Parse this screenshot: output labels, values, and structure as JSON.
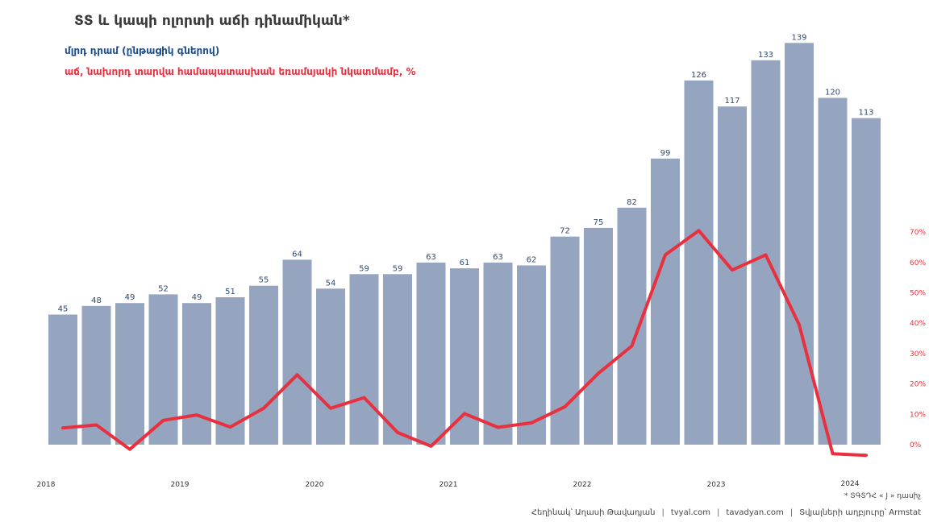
{
  "chart_data": {
    "type": "bar",
    "title": "ՏՏ և կապի ոլորտի աճի դինամիկան*",
    "subtitle_bars": "մլրդ դրամ (ընթացիկ գներով)",
    "subtitle_line": "աճ, նախորդ տարվա համապատասխան եռամսյակի նկատմամբ, %",
    "x_tick_labels": [
      "2018",
      "2019",
      "2020",
      "2021",
      "2022",
      "2023",
      "2024"
    ],
    "y2_ticks": [
      "0%",
      "10%",
      "20%",
      "30%",
      "40%",
      "50%",
      "60%",
      "70%"
    ],
    "y2_range": [
      0,
      70
    ],
    "grid": false,
    "bars": {
      "unit": "bn AMD",
      "values": [
        45,
        48,
        49,
        52,
        49,
        51,
        55,
        64,
        54,
        59,
        59,
        63,
        61,
        63,
        62,
        72,
        75,
        82,
        99,
        126,
        117,
        133,
        139,
        120,
        113
      ],
      "color": "#96a5bf",
      "label_color": "#2f4a70"
    },
    "line": {
      "unit": "%",
      "values": [
        5.5,
        6.5,
        -1.5,
        8,
        9.8,
        5.8,
        12,
        23,
        12,
        15.5,
        4,
        -0.5,
        10.2,
        5.7,
        7.2,
        12.5,
        23.5,
        32.5,
        62.5,
        70.5,
        57.5,
        62.5,
        39.5,
        -3,
        -3.5
      ],
      "color": "#e8303f"
    }
  },
  "note": "* ՏԳՏԴՀ « J » դասիչ",
  "footer": {
    "author": "Հեղինակ՝ Աղասի Թավադյան",
    "site1": "tvyal.com",
    "site2": "tavadyan.com",
    "source": "Տվյալների աղբյուրը՝ Armstat"
  }
}
